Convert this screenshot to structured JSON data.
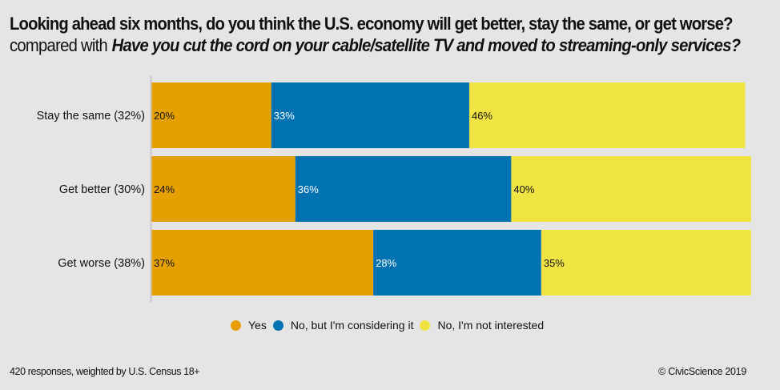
{
  "title": {
    "line1": "Looking ahead six months, do you think the U.S. economy will get better, stay the same, or get worse?",
    "compared_prefix": "compared with",
    "line2_question": "Have you cut the cord on your cable/satellite TV and moved to streaming-only services?"
  },
  "colors": {
    "yes": "#e5a000",
    "considering": "#0072b2",
    "not_interested": "#f0e442",
    "background": "#e5e5e5"
  },
  "chart_data": {
    "type": "bar",
    "orientation": "horizontal",
    "stacked": true,
    "categories": [
      "Stay the same (32%)",
      "Get better (30%)",
      "Get worse (38%)"
    ],
    "series": [
      {
        "name": "Yes",
        "color": "#e5a000",
        "values": [
          20,
          24,
          37
        ],
        "labels": [
          "20%",
          "24%",
          "37%"
        ]
      },
      {
        "name": "No, but I'm considering it",
        "color": "#0072b2",
        "values": [
          33,
          36,
          28
        ],
        "labels": [
          "33%",
          "36%",
          "28%"
        ]
      },
      {
        "name": "No, I'm not interested",
        "color": "#f0e442",
        "values": [
          46,
          40,
          35
        ],
        "labels": [
          "46%",
          "40%",
          "35%"
        ]
      }
    ],
    "xlim": [
      0,
      100
    ],
    "grid": false,
    "legend_position": "bottom"
  },
  "legend": [
    {
      "label": "Yes",
      "color": "#e5a000"
    },
    {
      "label": "No, but I'm considering it",
      "color": "#0072b2"
    },
    {
      "label": "No, I'm not interested",
      "color": "#f0e442"
    }
  ],
  "footer": {
    "responses": "420 responses, weighted by U.S. Census 18+",
    "copyright": "© CivicScience 2019"
  }
}
